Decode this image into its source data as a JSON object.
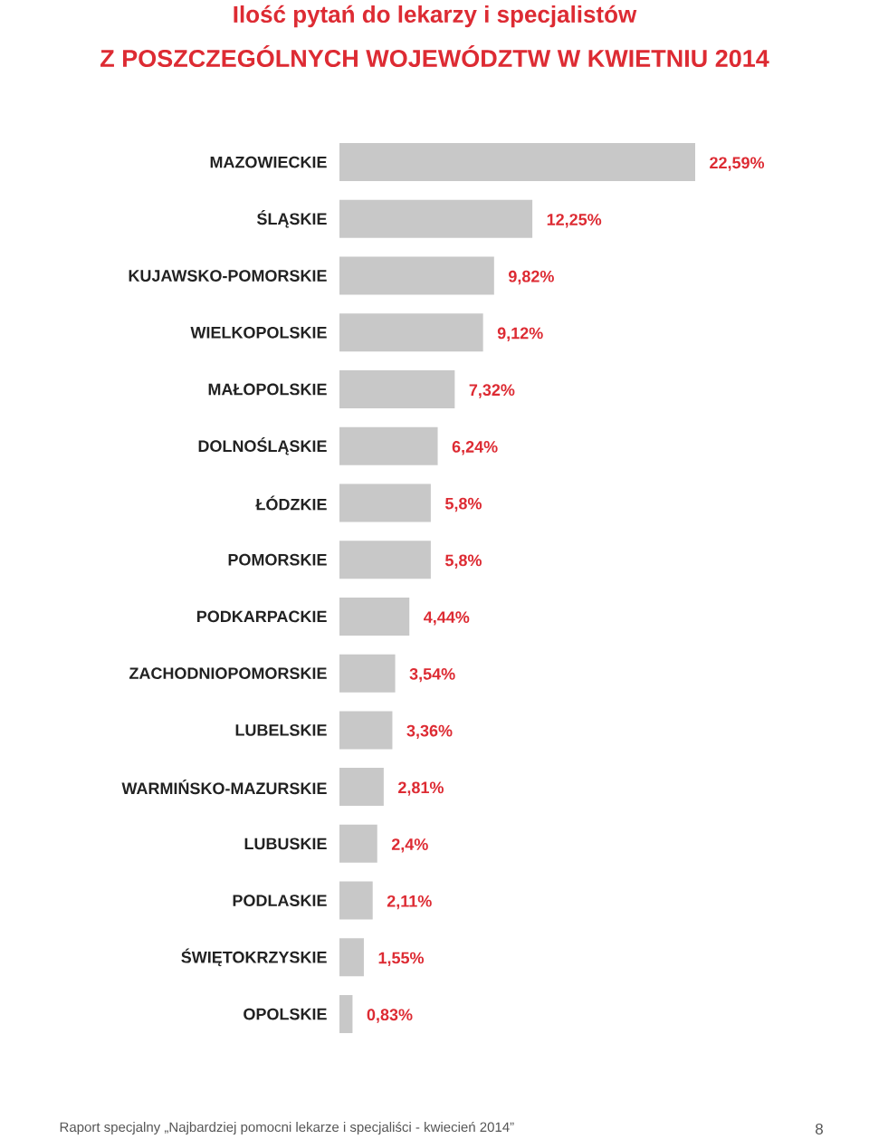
{
  "chart_data": {
    "type": "bar",
    "orientation": "horizontal",
    "title": "Ilość pytań do lekarzy i specjalistów",
    "subtitle": "Z POSZCZEGÓLNYCH WOJEWÓDZTW W KWIETNIU 2014",
    "categories": [
      "MAZOWIECKIE",
      "ŚLĄSKIE",
      "KUJAWSKO-POMORSKIE",
      "WIELKOPOLSKIE",
      "MAŁOPOLSKIE",
      "DOLNOŚLĄSKIE",
      "ŁÓDZKIE",
      "POMORSKIE",
      "PODKARPACKIE",
      "ZACHODNIOPOMORSKIE",
      "LUBELSKIE",
      "WARMIŃSKO-MAZURSKIE",
      "LUBUSKIE",
      "PODLASKIE",
      "ŚWIĘTOKRZYSKIE",
      "OPOLSKIE"
    ],
    "values": [
      22.59,
      12.25,
      9.82,
      9.12,
      7.32,
      6.24,
      5.8,
      5.8,
      4.44,
      3.54,
      3.36,
      2.81,
      2.4,
      2.11,
      1.55,
      0.83
    ],
    "value_labels": [
      "22,59%",
      "12,25%",
      "9,82%",
      "9,12%",
      "7,32%",
      "6,24%",
      "5,8%",
      "5,8%",
      "4,44%",
      "3,54%",
      "3,36%",
      "2,81%",
      "2,4%",
      "2,11%",
      "1,55%",
      "0,83%"
    ],
    "color": "#c8c8c8",
    "annotations": [
      "Raport specjalny „Najbardziej pomocni lekarze i specjaliści - kwiecień 2014”",
      "8"
    ]
  }
}
